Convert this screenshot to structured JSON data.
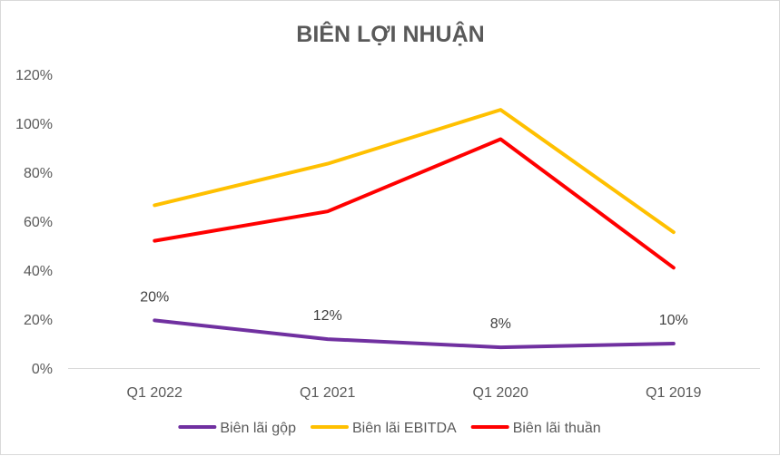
{
  "chart_data": {
    "type": "line",
    "title": "BIÊN LỢI NHUẬN",
    "xlabel": "",
    "ylabel": "",
    "categories": [
      "Q1 2022",
      "Q1 2021",
      "Q1 2020",
      "Q1 2019"
    ],
    "y_ticks": [
      "0%",
      "20%",
      "40%",
      "60%",
      "80%",
      "100%",
      "120%"
    ],
    "ylim": [
      0,
      1.2
    ],
    "y_format": "percent",
    "grid": false,
    "legend_position": "bottom",
    "series": [
      {
        "name": "Biên lãi gộp",
        "color": "#7030A0",
        "values": [
          0.195,
          0.118,
          0.085,
          0.1
        ],
        "data_labels": [
          "20%",
          "12%",
          "8%",
          "10%"
        ]
      },
      {
        "name": "Biên lãi EBITDA",
        "color": "#FFC000",
        "values": [
          0.665,
          0.835,
          1.055,
          0.555
        ],
        "data_labels": []
      },
      {
        "name": "Biên lãi thuần",
        "color": "#FF0000",
        "values": [
          0.52,
          0.64,
          0.935,
          0.41
        ],
        "data_labels": []
      }
    ]
  }
}
